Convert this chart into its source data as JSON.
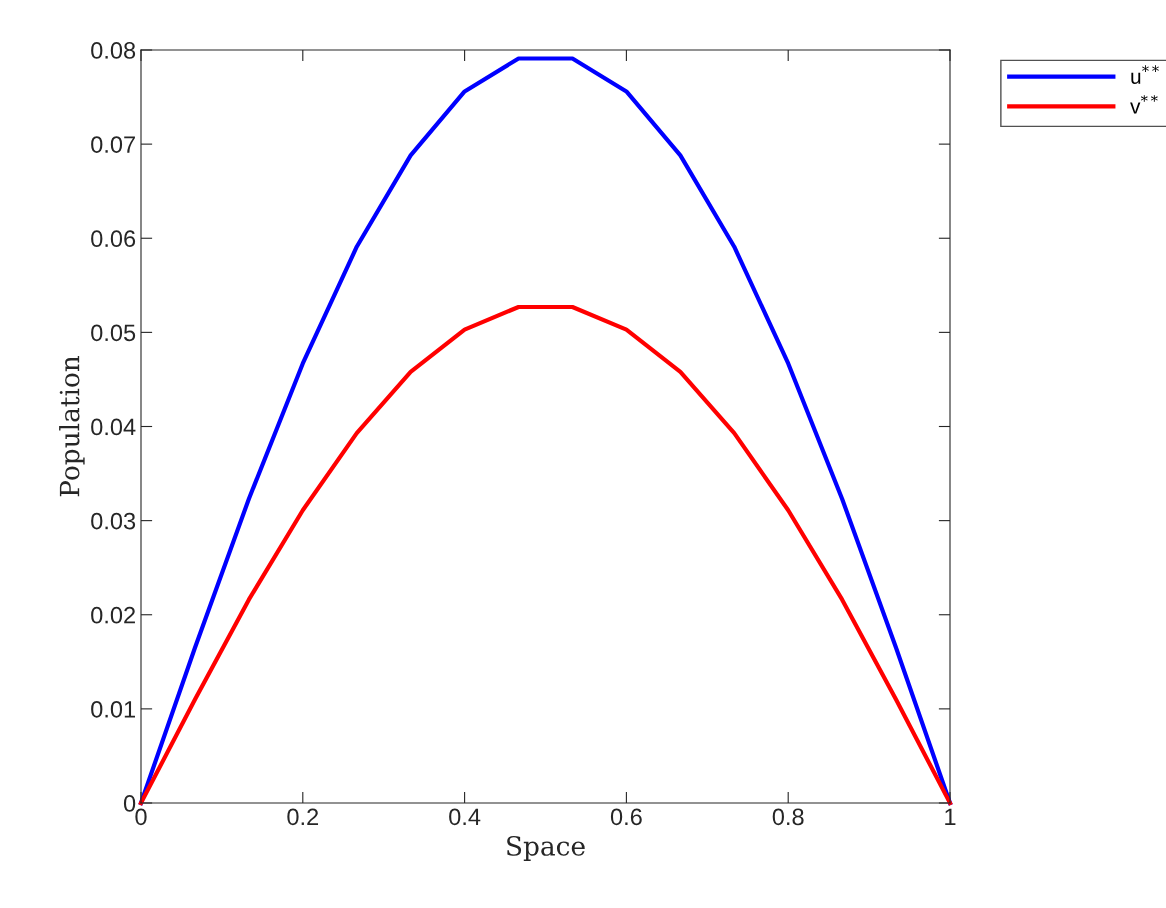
{
  "chart_data": {
    "type": "line",
    "xlabel": "Space",
    "ylabel": "Population",
    "x": [
      0,
      0.0667,
      0.1333,
      0.2,
      0.2667,
      0.3333,
      0.4,
      0.4667,
      0.5333,
      0.6,
      0.6667,
      0.7333,
      0.8,
      0.8667,
      0.9333,
      1
    ],
    "series": [
      {
        "name": "u$^{**}$",
        "color": "#0000ff",
        "values": [
          0,
          0.0165,
          0.0323,
          0.0467,
          0.0591,
          0.0688,
          0.0756,
          0.0791,
          0.0791,
          0.0756,
          0.0688,
          0.0591,
          0.0467,
          0.0323,
          0.0165,
          0
        ]
      },
      {
        "name": "v$^{**}$",
        "color": "#ff0000",
        "values": [
          0,
          0.011,
          0.0216,
          0.0311,
          0.0393,
          0.0458,
          0.0503,
          0.0527,
          0.0527,
          0.0503,
          0.0458,
          0.0393,
          0.0311,
          0.0216,
          0.011,
          0
        ]
      }
    ],
    "xlim": [
      0,
      1
    ],
    "ylim": [
      0,
      0.08
    ],
    "xticks": [
      0,
      0.2,
      0.4,
      0.6,
      0.8,
      1
    ],
    "yticks": [
      0,
      0.01,
      0.02,
      0.03,
      0.04,
      0.05,
      0.06,
      0.07,
      0.08
    ],
    "grid": false,
    "legend": "top right outside",
    "marker": "none",
    "line_style": "solid"
  }
}
